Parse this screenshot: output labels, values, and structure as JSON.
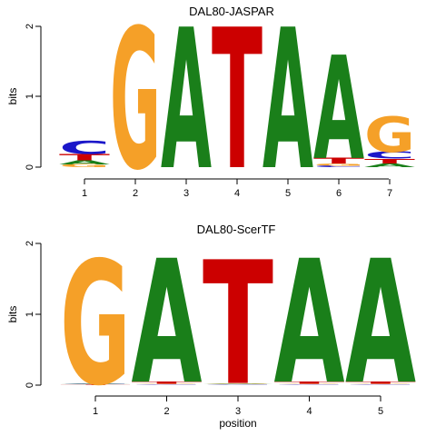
{
  "colors": {
    "A": "#1a7f1a",
    "C": "#1b17c9",
    "G": "#f5a028",
    "T": "#cc0000"
  },
  "chart_data": [
    {
      "type": "sequence-logo",
      "title": "DAL80-JASPAR",
      "ylabel": "bits",
      "xlabel": "",
      "ylim": [
        0,
        2
      ],
      "y_ticks": [
        "0",
        "1",
        "2"
      ],
      "positions": [
        "1",
        "2",
        "3",
        "4",
        "5",
        "6",
        "7"
      ],
      "stacks": [
        [
          {
            "letter": "G",
            "bits": 0.04
          },
          {
            "letter": "A",
            "bits": 0.06
          },
          {
            "letter": "T",
            "bits": 0.09
          },
          {
            "letter": "C",
            "bits": 0.18
          }
        ],
        [
          {
            "letter": "G",
            "bits": 2.0
          }
        ],
        [
          {
            "letter": "A",
            "bits": 2.0
          }
        ],
        [
          {
            "letter": "T",
            "bits": 2.0
          }
        ],
        [
          {
            "letter": "A",
            "bits": 2.0
          }
        ],
        [
          {
            "letter": "C",
            "bits": 0.02
          },
          {
            "letter": "G",
            "bits": 0.03
          },
          {
            "letter": "T",
            "bits": 0.08
          },
          {
            "letter": "A",
            "bits": 1.47
          }
        ],
        [
          {
            "letter": "A",
            "bits": 0.05
          },
          {
            "letter": "T",
            "bits": 0.07
          },
          {
            "letter": "C",
            "bits": 0.1
          },
          {
            "letter": "G",
            "bits": 0.5
          }
        ]
      ]
    },
    {
      "type": "sequence-logo",
      "title": "DAL80-ScerTF",
      "ylabel": "bits",
      "xlabel": "position",
      "ylim": [
        0,
        2
      ],
      "y_ticks": [
        "0",
        "1",
        "2"
      ],
      "positions": [
        "1",
        "2",
        "3",
        "4",
        "5"
      ],
      "stacks": [
        [
          {
            "letter": "T",
            "bits": 0.01
          },
          {
            "letter": "A",
            "bits": 0.01
          },
          {
            "letter": "C",
            "bits": 0.01
          },
          {
            "letter": "G",
            "bits": 1.75
          }
        ],
        [
          {
            "letter": "C",
            "bits": 0.01
          },
          {
            "letter": "G",
            "bits": 0.01
          },
          {
            "letter": "T",
            "bits": 0.03
          },
          {
            "letter": "A",
            "bits": 1.75
          }
        ],
        [
          {
            "letter": "C",
            "bits": 0.01
          },
          {
            "letter": "G",
            "bits": 0.01
          },
          {
            "letter": "A",
            "bits": 0.01
          },
          {
            "letter": "T",
            "bits": 1.75
          }
        ],
        [
          {
            "letter": "C",
            "bits": 0.01
          },
          {
            "letter": "G",
            "bits": 0.01
          },
          {
            "letter": "T",
            "bits": 0.03
          },
          {
            "letter": "A",
            "bits": 1.75
          }
        ],
        [
          {
            "letter": "C",
            "bits": 0.01
          },
          {
            "letter": "G",
            "bits": 0.01
          },
          {
            "letter": "T",
            "bits": 0.03
          },
          {
            "letter": "A",
            "bits": 1.75
          }
        ]
      ]
    }
  ]
}
